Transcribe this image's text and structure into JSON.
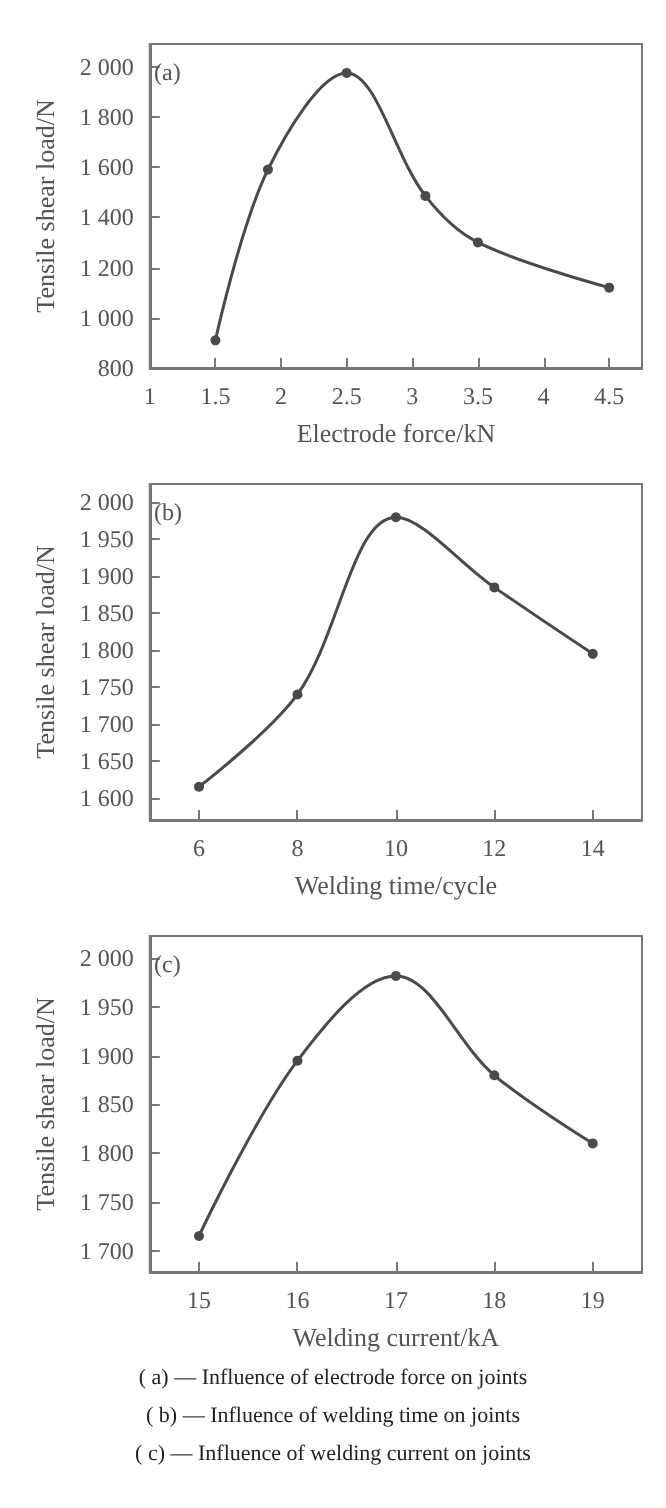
{
  "chart_data": [
    {
      "type": "line",
      "title": "(a)",
      "xlabel": "Electrode force/kN",
      "ylabel": "Tensile shear load/N",
      "x": [
        1.5,
        1.9,
        2.5,
        3.1,
        3.5,
        4.5
      ],
      "series": [
        {
          "color": "#4a4a4a",
          "values": [
            910,
            1590,
            1975,
            1485,
            1300,
            1120
          ]
        }
      ],
      "xlim": [
        1,
        4.75
      ],
      "xticks": [
        1,
        1.5,
        2,
        2.5,
        3,
        3.5,
        4,
        4.5
      ],
      "ylim": [
        800,
        2090
      ],
      "yticks": [
        800,
        {
          "value": 1000,
          "label": "1 000"
        },
        {
          "value": 1200,
          "label": "1 200"
        },
        {
          "value": 1400,
          "label": "1 400"
        },
        {
          "value": 1600,
          "label": "1 600"
        },
        {
          "value": 1800,
          "label": "1 800"
        },
        {
          "value": 2000,
          "label": "2 000"
        }
      ],
      "marker": "circle",
      "line_style": "solid",
      "grid": false,
      "annotations": [
        "( a) — Influence of electrode force on joints"
      ]
    },
    {
      "type": "line",
      "title": "(b)",
      "xlabel": "Welding time/cycle",
      "ylabel": "Tensile shear load/N",
      "x": [
        6,
        8,
        10,
        12,
        14
      ],
      "series": [
        {
          "color": "#4a4a4a",
          "values": [
            1615,
            1740,
            1980,
            1885,
            1795
          ]
        }
      ],
      "xlim": [
        5,
        15
      ],
      "xticks": [
        6,
        8,
        10,
        12,
        14
      ],
      "ylim": [
        1570,
        2025
      ],
      "yticks": [
        {
          "value": 1600,
          "label": "1 600"
        },
        {
          "value": 1650,
          "label": "1 650"
        },
        {
          "value": 1700,
          "label": "1 700"
        },
        {
          "value": 1750,
          "label": "1 750"
        },
        {
          "value": 1800,
          "label": "1 800"
        },
        {
          "value": 1850,
          "label": "1 850"
        },
        {
          "value": 1900,
          "label": "1 900"
        },
        {
          "value": 1950,
          "label": "1 950"
        },
        {
          "value": 2000,
          "label": "2 000"
        }
      ],
      "marker": "circle",
      "line_style": "solid",
      "grid": false,
      "annotations": [
        "( b) — Influence of welding time on joints"
      ]
    },
    {
      "type": "line",
      "title": "(c)",
      "xlabel": "Welding current/kA",
      "ylabel": "Tensile shear load/N",
      "x": [
        15,
        16,
        17,
        18,
        19
      ],
      "series": [
        {
          "color": "#4a4a4a",
          "values": [
            1715,
            1895,
            1982,
            1880,
            1810
          ]
        }
      ],
      "xlim": [
        14.5,
        19.5
      ],
      "xticks": [
        15,
        16,
        17,
        18,
        19
      ],
      "ylim": [
        1678,
        2023
      ],
      "yticks": [
        {
          "value": 1700,
          "label": "1 700"
        },
        {
          "value": 1750,
          "label": "1 750"
        },
        {
          "value": 1800,
          "label": "1 800"
        },
        {
          "value": 1850,
          "label": "1 850"
        },
        {
          "value": 1900,
          "label": "1 900"
        },
        {
          "value": 1950,
          "label": "1 950"
        },
        {
          "value": 2000,
          "label": "2 000"
        }
      ],
      "marker": "circle",
      "line_style": "solid",
      "grid": false,
      "annotations": [
        "( c) — Influence of welding current on joints"
      ]
    }
  ]
}
